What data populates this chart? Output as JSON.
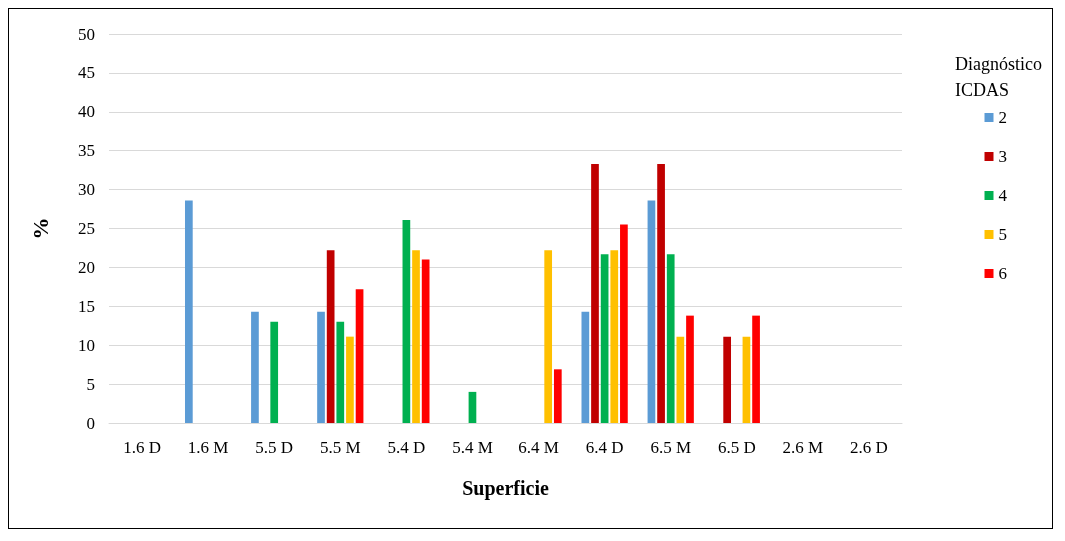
{
  "chart_data": {
    "type": "bar",
    "xlabel": "Superficie",
    "ylabel": "%",
    "legend_title": "Diagnóstico ICDAS",
    "categories": [
      "1.6 D",
      "1.6 M",
      "5.5 D",
      "5.5 M",
      "5.4 D",
      "5.4 M",
      "6.4 M",
      "6.4 D",
      "6.5 M",
      "6.5 D",
      "2.6 M",
      "2.6 D"
    ],
    "series": [
      {
        "name": "2",
        "color": "#5b9bd5",
        "values": [
          0,
          28.6,
          14.3,
          14.3,
          0,
          0,
          0,
          14.3,
          28.6,
          0,
          0,
          0
        ]
      },
      {
        "name": "3",
        "color": "#c00000",
        "values": [
          0,
          0,
          0,
          22.2,
          0,
          0,
          0,
          33.3,
          33.3,
          11.1,
          0,
          0
        ]
      },
      {
        "name": "4",
        "color": "#00b050",
        "values": [
          0,
          0,
          13.0,
          13.0,
          26.1,
          4.0,
          0,
          21.7,
          21.7,
          0,
          0,
          0
        ]
      },
      {
        "name": "5",
        "color": "#ffc000",
        "values": [
          0,
          0,
          0,
          11.1,
          22.2,
          0,
          22.2,
          22.2,
          11.1,
          11.1,
          0,
          0
        ]
      },
      {
        "name": "6",
        "color": "#ff0000",
        "values": [
          0,
          0,
          0,
          17.2,
          21.0,
          0,
          6.9,
          25.5,
          13.8,
          13.8,
          0,
          0
        ]
      }
    ],
    "ylim": [
      0,
      50
    ],
    "yticks": [
      0,
      5,
      10,
      15,
      20,
      25,
      30,
      35,
      40,
      45,
      50
    ],
    "grid": "y",
    "legend": "right"
  }
}
